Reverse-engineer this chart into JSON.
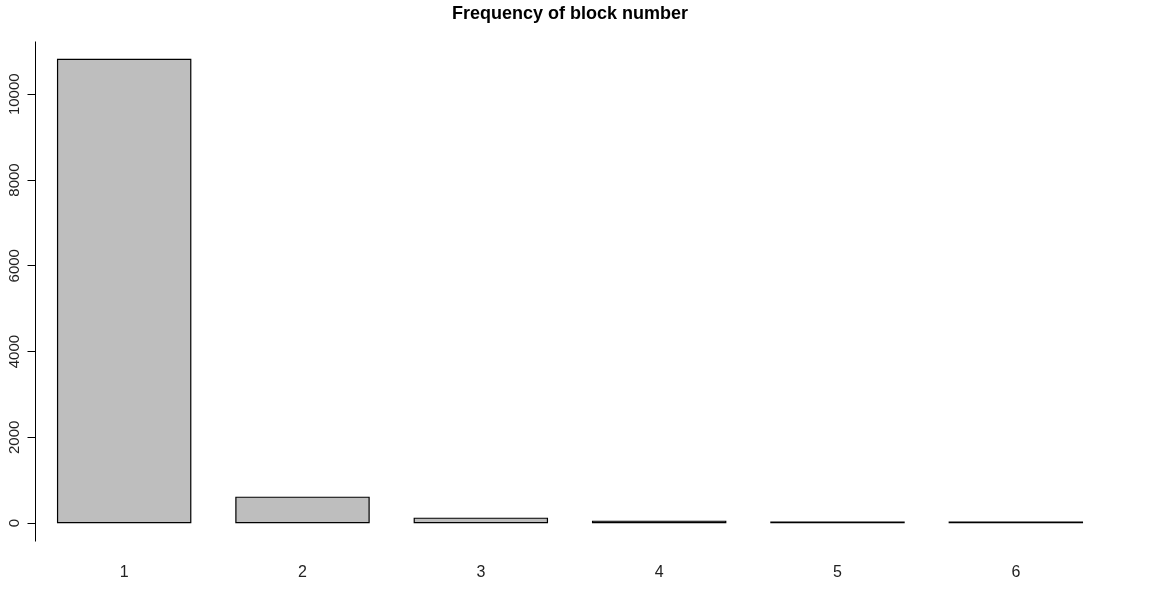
{
  "chart_data": {
    "type": "bar",
    "title": "Frequency of block number",
    "categories": [
      "1",
      "2",
      "3",
      "4",
      "5",
      "6"
    ],
    "values": [
      10800,
      590,
      100,
      30,
      10,
      10
    ],
    "color": "#bebebe",
    "ylim": [
      -430,
      11230
    ],
    "yticks": [
      0,
      2000,
      4000,
      6000,
      8000,
      10000
    ],
    "grid": false
  }
}
